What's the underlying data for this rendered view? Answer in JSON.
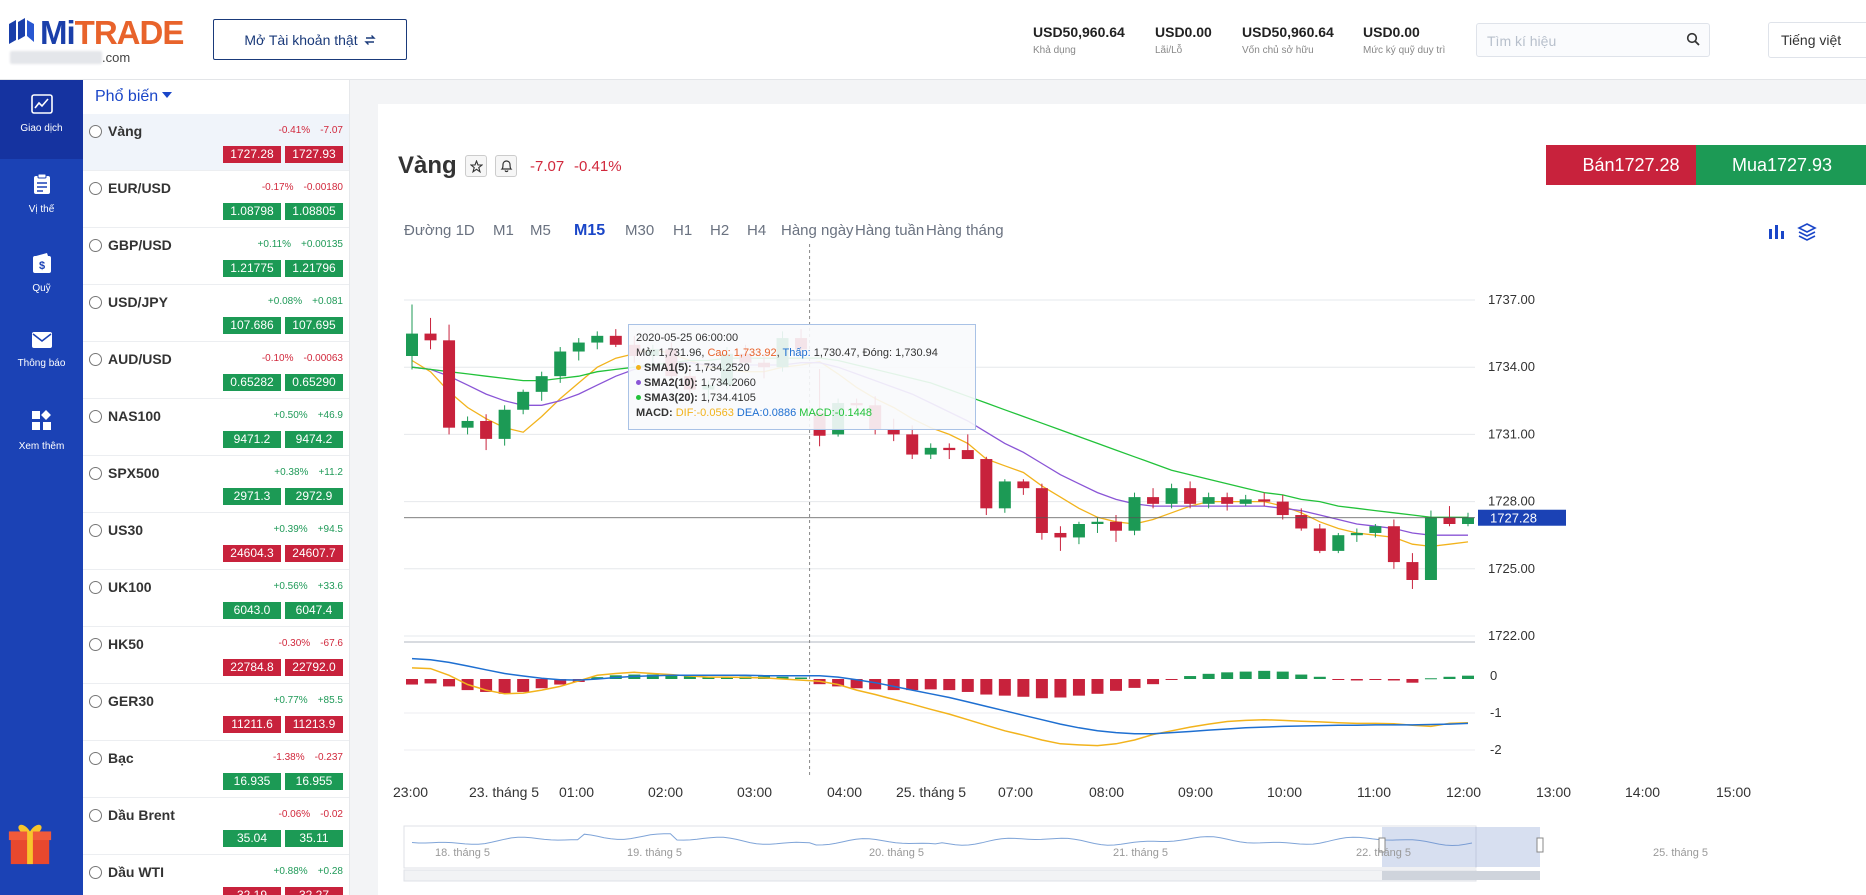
{
  "header": {
    "logo": "MiTRADE",
    "logo_suffix": ".com",
    "real_account_button": "Mở Tài khoản thật",
    "stats": [
      {
        "value": "USD50,960.64",
        "label": "Khả dụng"
      },
      {
        "value": "USD0.00",
        "label": "Lãi/Lỗ"
      },
      {
        "value": "USD50,960.64",
        "label": "Vốn chủ sở hữu"
      },
      {
        "value": "USD0.00",
        "label": "Mức ký quỹ duy trì"
      }
    ],
    "search_placeholder": "Tìm kí hiệu",
    "language": "Tiếng việt"
  },
  "nav": [
    {
      "label": "Giao dịch",
      "icon": "chart-line-icon"
    },
    {
      "label": "Vị thế",
      "icon": "clipboard-icon"
    },
    {
      "label": "Quỹ",
      "icon": "wallet-icon"
    },
    {
      "label": "Thông báo",
      "icon": "mail-icon"
    },
    {
      "label": "Xem thêm",
      "icon": "grid-icon"
    }
  ],
  "list": {
    "header": "Phổ biến",
    "items": [
      {
        "name": "Vàng",
        "pct": "-0.41%",
        "chg": "-7.07",
        "dir": "down",
        "sell": "1727.28",
        "buy": "1727.93",
        "pxdir": "down"
      },
      {
        "name": "EUR/USD",
        "pct": "-0.17%",
        "chg": "-0.00180",
        "dir": "down",
        "sell": "1.08798",
        "buy": "1.08805",
        "pxdir": "up"
      },
      {
        "name": "GBP/USD",
        "pct": "+0.11%",
        "chg": "+0.00135",
        "dir": "up",
        "sell": "1.21775",
        "buy": "1.21796",
        "pxdir": "up"
      },
      {
        "name": "USD/JPY",
        "pct": "+0.08%",
        "chg": "+0.081",
        "dir": "up",
        "sell": "107.686",
        "buy": "107.695",
        "pxdir": "up"
      },
      {
        "name": "AUD/USD",
        "pct": "-0.10%",
        "chg": "-0.00063",
        "dir": "down",
        "sell": "0.65282",
        "buy": "0.65290",
        "pxdir": "up"
      },
      {
        "name": "NAS100",
        "pct": "+0.50%",
        "chg": "+46.9",
        "dir": "up",
        "sell": "9471.2",
        "buy": "9474.2",
        "pxdir": "up"
      },
      {
        "name": "SPX500",
        "pct": "+0.38%",
        "chg": "+11.2",
        "dir": "up",
        "sell": "2971.3",
        "buy": "2972.9",
        "pxdir": "up"
      },
      {
        "name": "US30",
        "pct": "+0.39%",
        "chg": "+94.5",
        "dir": "up",
        "sell": "24604.3",
        "buy": "24607.7",
        "pxdir": "down"
      },
      {
        "name": "UK100",
        "pct": "+0.56%",
        "chg": "+33.6",
        "dir": "up",
        "sell": "6043.0",
        "buy": "6047.4",
        "pxdir": "up"
      },
      {
        "name": "HK50",
        "pct": "-0.30%",
        "chg": "-67.6",
        "dir": "down",
        "sell": "22784.8",
        "buy": "22792.0",
        "pxdir": "down"
      },
      {
        "name": "GER30",
        "pct": "+0.77%",
        "chg": "+85.5",
        "dir": "up",
        "sell": "11211.6",
        "buy": "11213.9",
        "pxdir": "down"
      },
      {
        "name": "Bạc",
        "pct": "-1.38%",
        "chg": "-0.237",
        "dir": "down",
        "sell": "16.935",
        "buy": "16.955",
        "pxdir": "up"
      },
      {
        "name": "Dầu Brent",
        "pct": "-0.06%",
        "chg": "-0.02",
        "dir": "down",
        "sell": "35.04",
        "buy": "35.11",
        "pxdir": "up"
      },
      {
        "name": "Dầu WTI",
        "pct": "+0.88%",
        "chg": "+0.28",
        "dir": "up",
        "sell": "32.19",
        "buy": "32.27",
        "pxdir": "down"
      }
    ]
  },
  "instrument": {
    "name": "Vàng",
    "change": "-7.07",
    "pct": "-0.41%",
    "sell_label": "Bán1727.28",
    "buy_label": "Mua1727.93"
  },
  "timeframes": [
    {
      "label": "Đường 1D",
      "active": false
    },
    {
      "label": "M1",
      "active": false
    },
    {
      "label": "M5",
      "active": false
    },
    {
      "label": "M15",
      "active": true
    },
    {
      "label": "M30",
      "active": false
    },
    {
      "label": "H1",
      "active": false
    },
    {
      "label": "H2",
      "active": false
    },
    {
      "label": "H4",
      "active": false
    },
    {
      "label": "Hàng ngày",
      "active": false
    },
    {
      "label": "Hàng tuần",
      "active": false
    },
    {
      "label": "Hàng tháng",
      "active": false
    }
  ],
  "tooltip": {
    "date": "2020-05-25 06:00:00",
    "open_label": "Mở:",
    "open": "1,731.96",
    "high_label": "Cao:",
    "high": "1,733.92",
    "low_label": "Thấp:",
    "low": "1,730.47",
    "close_label": "Đóng:",
    "close": "1,730.94",
    "sma1_label": "SMA1(5):",
    "sma1": "1,734.2520",
    "sma2_label": "SMA2(10):",
    "sma2": "1,734.2060",
    "sma3_label": "SMA3(20):",
    "sma3": "1,734.4105",
    "macd_label": "MACD:",
    "dif": "DIF:-0.0563",
    "dea": "DEA:0.0886",
    "macd": "MACD:-0.1448"
  },
  "colors": {
    "up": "#1c9a55",
    "down": "#c8223c",
    "brand": "#1b42b5",
    "sma1": "#f2b31c",
    "sma2": "#8a55d6",
    "sma3": "#22c23a",
    "dif_line": "#f2b31c",
    "dea_line": "#1e6fd1"
  },
  "chart_data": {
    "type": "candlestick",
    "y_ticks": [
      "1737.00",
      "1734.00",
      "1731.00",
      "1728.00",
      "1725.00",
      "1722.00"
    ],
    "ylim": [
      1722,
      1737
    ],
    "current_price": "1727.28",
    "macd_ticks": [
      "0",
      "-1",
      "-2"
    ],
    "x_ticks": [
      "23:00",
      "23. tháng 5",
      "01:00",
      "02:00",
      "03:00",
      "04:00",
      "25. tháng 5",
      "07:00",
      "08:00",
      "09:00",
      "10:00",
      "11:00",
      "12:00",
      "13:00",
      "14:00",
      "15:00"
    ],
    "navigator_ticks": [
      "18. tháng 5",
      "19. tháng 5",
      "20. tháng 5",
      "21. tháng 5",
      "22. tháng 5",
      "25. tháng 5"
    ],
    "candles": [
      [
        1734.5,
        1736.8,
        1733.9,
        1735.5
      ],
      [
        1735.5,
        1736.2,
        1734.8,
        1735.2
      ],
      [
        1735.2,
        1735.9,
        1731.0,
        1731.3
      ],
      [
        1731.3,
        1731.8,
        1731.0,
        1731.6
      ],
      [
        1731.6,
        1731.9,
        1730.3,
        1730.8
      ],
      [
        1730.8,
        1732.3,
        1730.5,
        1732.1
      ],
      [
        1732.1,
        1733.0,
        1731.9,
        1732.9
      ],
      [
        1732.9,
        1733.8,
        1732.5,
        1733.6
      ],
      [
        1733.6,
        1734.9,
        1733.3,
        1734.7
      ],
      [
        1734.7,
        1735.3,
        1734.3,
        1735.1
      ],
      [
        1735.1,
        1735.6,
        1734.8,
        1735.4
      ],
      [
        1735.4,
        1735.7,
        1734.9,
        1735.0
      ],
      [
        1735.0,
        1735.4,
        1734.2,
        1734.5
      ],
      [
        1734.5,
        1735.0,
        1734.1,
        1734.8
      ],
      [
        1734.8,
        1735.1,
        1733.4,
        1733.6
      ],
      [
        1733.6,
        1734.0,
        1732.8,
        1733.0
      ],
      [
        1733.0,
        1733.4,
        1732.6,
        1733.2
      ],
      [
        1733.2,
        1734.9,
        1733.0,
        1734.6
      ],
      [
        1734.6,
        1735.0,
        1733.9,
        1734.2
      ],
      [
        1734.2,
        1734.6,
        1733.5,
        1734.0
      ],
      [
        1734.0,
        1735.6,
        1733.8,
        1735.3
      ],
      [
        1735.3,
        1735.7,
        1734.5,
        1734.8
      ],
      [
        1731.96,
        1733.92,
        1730.47,
        1730.94
      ],
      [
        1731.0,
        1732.6,
        1730.9,
        1732.4
      ],
      [
        1732.4,
        1732.6,
        1732.1,
        1732.3
      ],
      [
        1732.3,
        1732.7,
        1731.0,
        1731.2
      ],
      [
        1731.2,
        1731.7,
        1730.7,
        1731.0
      ],
      [
        1731.0,
        1731.4,
        1729.9,
        1730.1
      ],
      [
        1730.1,
        1730.6,
        1729.9,
        1730.4
      ],
      [
        1730.4,
        1730.6,
        1729.9,
        1730.3
      ],
      [
        1730.3,
        1731.0,
        1730.0,
        1729.9
      ],
      [
        1729.9,
        1730.0,
        1727.4,
        1727.7
      ],
      [
        1727.7,
        1729.0,
        1727.5,
        1728.9
      ],
      [
        1728.9,
        1729.0,
        1728.3,
        1728.6
      ],
      [
        1728.6,
        1728.8,
        1726.3,
        1726.6
      ],
      [
        1726.6,
        1726.9,
        1725.8,
        1726.4
      ],
      [
        1726.4,
        1727.1,
        1726.1,
        1727.0
      ],
      [
        1727.0,
        1727.3,
        1726.6,
        1727.1
      ],
      [
        1727.1,
        1727.4,
        1726.2,
        1726.7
      ],
      [
        1726.7,
        1728.4,
        1726.5,
        1728.2
      ],
      [
        1728.2,
        1728.6,
        1727.7,
        1727.9
      ],
      [
        1727.9,
        1728.8,
        1727.7,
        1728.6
      ],
      [
        1728.6,
        1728.9,
        1727.7,
        1727.9
      ],
      [
        1727.9,
        1728.4,
        1727.7,
        1728.2
      ],
      [
        1728.2,
        1728.4,
        1727.6,
        1727.9
      ],
      [
        1727.9,
        1728.3,
        1727.8,
        1728.1
      ],
      [
        1728.1,
        1728.4,
        1727.8,
        1728.0
      ],
      [
        1728.0,
        1728.3,
        1727.2,
        1727.4
      ],
      [
        1727.4,
        1727.7,
        1726.7,
        1726.8
      ],
      [
        1726.8,
        1727.0,
        1725.7,
        1725.8
      ],
      [
        1725.8,
        1726.6,
        1725.7,
        1726.5
      ],
      [
        1726.5,
        1726.8,
        1726.2,
        1726.6
      ],
      [
        1726.6,
        1727.0,
        1726.4,
        1726.9
      ],
      [
        1726.9,
        1727.2,
        1725.0,
        1725.3
      ],
      [
        1725.3,
        1725.7,
        1724.1,
        1724.5
      ],
      [
        1724.5,
        1727.6,
        1724.5,
        1727.3
      ],
      [
        1727.3,
        1727.8,
        1726.9,
        1727.0
      ],
      [
        1727.0,
        1727.5,
        1726.9,
        1727.3
      ]
    ],
    "sma1": [
      1734.3,
      1733.8,
      1732.9,
      1732.2,
      1731.7,
      1731.3,
      1731.1,
      1731.8,
      1732.6,
      1733.3,
      1734.0,
      1734.4,
      1734.6,
      1734.8,
      1734.6,
      1734.3,
      1734.0,
      1733.9,
      1733.8,
      1733.8,
      1734.0,
      1734.1,
      1734.25,
      1733.7,
      1733.1,
      1732.6,
      1732.2,
      1731.7,
      1731.3,
      1731.0,
      1730.6,
      1729.9,
      1729.6,
      1729.3,
      1728.7,
      1728.2,
      1727.7,
      1727.3,
      1727.1,
      1727.0,
      1727.2,
      1727.5,
      1727.8,
      1728.0,
      1728.0,
      1728.0,
      1728.0,
      1727.8,
      1727.5,
      1727.1,
      1726.8,
      1726.6,
      1726.5,
      1726.4,
      1726.1,
      1726.0,
      1726.1,
      1726.2
    ],
    "sma2": [
      1734.0,
      1733.9,
      1733.6,
      1733.2,
      1732.8,
      1732.5,
      1732.3,
      1732.3,
      1732.5,
      1732.8,
      1733.2,
      1733.6,
      1733.9,
      1734.1,
      1734.2,
      1734.2,
      1734.1,
      1734.1,
      1734.1,
      1734.1,
      1734.1,
      1734.2,
      1734.2,
      1734.0,
      1733.7,
      1733.4,
      1733.1,
      1732.8,
      1732.4,
      1732.0,
      1731.6,
      1731.1,
      1730.6,
      1730.2,
      1729.7,
      1729.2,
      1728.8,
      1728.4,
      1728.1,
      1727.9,
      1727.8,
      1727.8,
      1727.8,
      1727.8,
      1727.8,
      1727.8,
      1727.8,
      1727.7,
      1727.6,
      1727.4,
      1727.2,
      1727.0,
      1726.9,
      1726.8,
      1726.6,
      1726.5,
      1726.5,
      1726.5
    ],
    "sma3": [
      1734.0,
      1733.9,
      1733.8,
      1733.7,
      1733.6,
      1733.5,
      1733.4,
      1733.4,
      1733.5,
      1733.6,
      1733.8,
      1733.9,
      1734.0,
      1734.1,
      1734.2,
      1734.3,
      1734.3,
      1734.4,
      1734.4,
      1734.4,
      1734.4,
      1734.4,
      1734.41,
      1734.3,
      1734.1,
      1733.9,
      1733.7,
      1733.5,
      1733.3,
      1733.0,
      1732.7,
      1732.4,
      1732.1,
      1731.8,
      1731.5,
      1731.2,
      1730.9,
      1730.6,
      1730.3,
      1730.0,
      1729.7,
      1729.4,
      1729.2,
      1729.0,
      1728.8,
      1728.6,
      1728.4,
      1728.3,
      1728.1,
      1728.0,
      1727.8,
      1727.7,
      1727.6,
      1727.5,
      1727.4,
      1727.3,
      1727.3,
      1727.3
    ],
    "macd_hist": [
      -0.15,
      -0.12,
      -0.2,
      -0.3,
      -0.35,
      -0.4,
      -0.35,
      -0.25,
      -0.15,
      -0.08,
      0.05,
      0.1,
      0.12,
      0.12,
      0.1,
      0.08,
      0.06,
      0.06,
      0.07,
      0.07,
      0.06,
      0.04,
      -0.14,
      -0.2,
      -0.25,
      -0.28,
      -0.3,
      -0.3,
      -0.28,
      -0.3,
      -0.35,
      -0.42,
      -0.45,
      -0.48,
      -0.52,
      -0.5,
      -0.45,
      -0.4,
      -0.32,
      -0.24,
      -0.14,
      -0.02,
      0.08,
      0.14,
      0.18,
      0.2,
      0.22,
      0.2,
      0.12,
      0.06,
      -0.02,
      -0.04,
      -0.02,
      -0.04,
      -0.1,
      0.02,
      0.06,
      0.09
    ],
    "dif": [
      0.3,
      0.28,
      0.1,
      -0.15,
      -0.3,
      -0.4,
      -0.38,
      -0.3,
      -0.2,
      -0.05,
      0.1,
      0.15,
      0.18,
      0.15,
      0.12,
      0.08,
      0.05,
      0.05,
      0.04,
      0.03,
      0.0,
      -0.03,
      -0.06,
      -0.15,
      -0.3,
      -0.42,
      -0.55,
      -0.68,
      -0.82,
      -0.95,
      -1.1,
      -1.25,
      -1.4,
      -1.52,
      -1.65,
      -1.75,
      -1.78,
      -1.8,
      -1.75,
      -1.65,
      -1.5,
      -1.4,
      -1.3,
      -1.22,
      -1.15,
      -1.12,
      -1.1,
      -1.12,
      -1.14,
      -1.16,
      -1.18,
      -1.2,
      -1.2,
      -1.21,
      -1.25,
      -1.28,
      -1.2,
      -1.18
    ],
    "dea": [
      0.55,
      0.52,
      0.45,
      0.35,
      0.25,
      0.15,
      0.08,
      0.02,
      -0.02,
      -0.03,
      0.0,
      0.04,
      0.07,
      0.09,
      0.1,
      0.1,
      0.1,
      0.1,
      0.1,
      0.09,
      0.09,
      0.09,
      0.09,
      0.05,
      -0.02,
      -0.1,
      -0.2,
      -0.3,
      -0.4,
      -0.5,
      -0.62,
      -0.74,
      -0.86,
      -0.98,
      -1.1,
      -1.22,
      -1.32,
      -1.4,
      -1.45,
      -1.48,
      -1.48,
      -1.45,
      -1.42,
      -1.38,
      -1.35,
      -1.32,
      -1.3,
      -1.28,
      -1.27,
      -1.26,
      -1.25,
      -1.25,
      -1.24,
      -1.24,
      -1.24,
      -1.23,
      -1.22,
      -1.2
    ]
  }
}
